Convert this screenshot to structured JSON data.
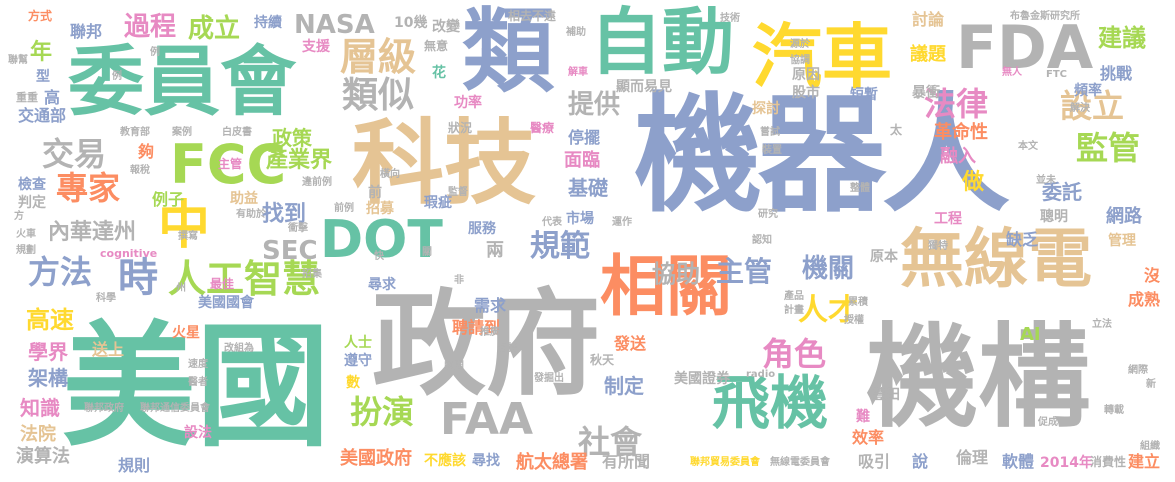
{
  "colors": {
    "green": "#66c2a5",
    "orange": "#fc8d62",
    "blue": "#8da0cb",
    "pink": "#e78ac3",
    "lime": "#a6d854",
    "yellow": "#ffd92f",
    "tan": "#e5c494",
    "gray": "#b3b3b3"
  },
  "words": [
    {
      "text": "機器人",
      "color": "blue"
    },
    {
      "text": "政府",
      "color": "gray"
    },
    {
      "text": "美國",
      "color": "green"
    },
    {
      "text": "機構",
      "color": "gray"
    },
    {
      "text": "科技",
      "color": "tan"
    },
    {
      "text": "類",
      "color": "blue"
    },
    {
      "text": "自動",
      "color": "green"
    },
    {
      "text": "汽車",
      "color": "yellow"
    },
    {
      "text": "委員會",
      "color": "green"
    },
    {
      "text": "FDA",
      "color": "gray"
    },
    {
      "text": "無線電",
      "color": "tan"
    },
    {
      "text": "相關",
      "color": "orange"
    },
    {
      "text": "DOT",
      "color": "green"
    },
    {
      "text": "飛機",
      "color": "green"
    },
    {
      "text": "FCC",
      "color": "lime"
    },
    {
      "text": "中",
      "color": "yellow"
    },
    {
      "text": "FAA",
      "color": "gray"
    },
    {
      "text": "層級",
      "color": "tan"
    },
    {
      "text": "類似",
      "color": "gray"
    },
    {
      "text": "時",
      "color": "blue"
    },
    {
      "text": "人工智慧",
      "color": "lime"
    },
    {
      "text": "法律",
      "color": "pink"
    },
    {
      "text": "設立",
      "color": "tan"
    },
    {
      "text": "監管",
      "color": "lime"
    },
    {
      "text": "專家",
      "color": "orange"
    },
    {
      "text": "交易",
      "color": "gray"
    },
    {
      "text": "方法",
      "color": "blue"
    },
    {
      "text": "規範",
      "color": "blue"
    },
    {
      "text": "扮演",
      "color": "lime"
    },
    {
      "text": "社會",
      "color": "gray"
    },
    {
      "text": "角色",
      "color": "pink"
    },
    {
      "text": "人才",
      "color": "yellow"
    },
    {
      "text": "機關",
      "color": "blue"
    },
    {
      "text": "主管",
      "color": "blue"
    },
    {
      "text": "過程",
      "color": "pink"
    },
    {
      "text": "成立",
      "color": "lime"
    },
    {
      "text": "NASA",
      "color": "gray"
    },
    {
      "text": "建議",
      "color": "lime"
    },
    {
      "text": "提供",
      "color": "gray"
    },
    {
      "text": "政策",
      "color": "lime"
    },
    {
      "text": "產業界",
      "color": "lime"
    },
    {
      "text": "找到",
      "color": "blue"
    },
    {
      "text": "SEC",
      "color": "gray"
    },
    {
      "text": "內華達州",
      "color": "gray"
    },
    {
      "text": "協助",
      "color": "gray"
    },
    {
      "text": "高速",
      "color": "yellow"
    },
    {
      "text": "學界",
      "color": "pink"
    },
    {
      "text": "架構",
      "color": "blue"
    },
    {
      "text": "知識",
      "color": "pink"
    },
    {
      "text": "法院",
      "color": "tan"
    },
    {
      "text": "演算法",
      "color": "gray"
    },
    {
      "text": "規則",
      "color": "blue"
    },
    {
      "text": "設法",
      "color": "pink"
    },
    {
      "text": "美國政府",
      "color": "orange"
    },
    {
      "text": "不應該",
      "color": "yellow"
    },
    {
      "text": "尋找",
      "color": "blue"
    },
    {
      "text": "航太總署",
      "color": "orange"
    },
    {
      "text": "有所聞",
      "color": "gray"
    },
    {
      "text": "吸引",
      "color": "gray"
    },
    {
      "text": "說",
      "color": "blue"
    },
    {
      "text": "倫理",
      "color": "gray"
    },
    {
      "text": "軟體",
      "color": "blue"
    },
    {
      "text": "2014年",
      "color": "pink"
    },
    {
      "text": "消費性",
      "color": "gray"
    },
    {
      "text": "建立",
      "color": "orange"
    },
    {
      "text": "聯邦貿易委員會",
      "color": "yellow"
    },
    {
      "text": "無線電委員會",
      "color": "gray"
    },
    {
      "text": "效率",
      "color": "orange"
    },
    {
      "text": "難",
      "color": "pink"
    },
    {
      "text": "豐田",
      "color": "gray"
    },
    {
      "text": "美國證券",
      "color": "gray"
    },
    {
      "text": "制定",
      "color": "blue"
    },
    {
      "text": "秋天",
      "color": "gray"
    },
    {
      "text": "發送",
      "color": "orange"
    },
    {
      "text": "聘請到",
      "color": "orange"
    },
    {
      "text": "需求",
      "color": "blue"
    },
    {
      "text": "尋求",
      "color": "blue"
    },
    {
      "text": "美國國會",
      "color": "blue"
    },
    {
      "text": "火星",
      "color": "orange"
    },
    {
      "text": "送上",
      "color": "tan"
    },
    {
      "text": "人士",
      "color": "lime"
    },
    {
      "text": "遵守",
      "color": "blue"
    },
    {
      "text": "數",
      "color": "yellow"
    },
    {
      "text": "市場",
      "color": "blue"
    },
    {
      "text": "服務",
      "color": "blue"
    },
    {
      "text": "兩",
      "color": "gray"
    },
    {
      "text": "瑕疵",
      "color": "blue"
    },
    {
      "text": "招募",
      "color": "tan"
    },
    {
      "text": "前",
      "color": "gray"
    },
    {
      "text": "例子",
      "color": "lime"
    },
    {
      "text": "夠",
      "color": "orange"
    },
    {
      "text": "年",
      "color": "lime"
    },
    {
      "text": "聯邦",
      "color": "blue"
    },
    {
      "text": "方式",
      "color": "orange"
    },
    {
      "text": "持續",
      "color": "blue"
    },
    {
      "text": "10幾",
      "color": "gray"
    },
    {
      "text": "改變",
      "color": "gray"
    },
    {
      "text": "相去不遠",
      "color": "gray"
    },
    {
      "text": "討論",
      "color": "tan"
    },
    {
      "text": "布魯金斯研究所",
      "color": "gray"
    },
    {
      "text": "議題",
      "color": "yellow"
    },
    {
      "text": "挑戰",
      "color": "blue"
    },
    {
      "text": "頻率",
      "color": "blue"
    },
    {
      "text": "革命性",
      "color": "orange"
    },
    {
      "text": "融入",
      "color": "pink"
    },
    {
      "text": "做",
      "color": "yellow"
    },
    {
      "text": "委託",
      "color": "blue"
    },
    {
      "text": "網路",
      "color": "blue"
    },
    {
      "text": "聰明",
      "color": "gray"
    },
    {
      "text": "缺乏",
      "color": "blue"
    },
    {
      "text": "管理",
      "color": "tan"
    },
    {
      "text": "原因",
      "color": "gray"
    },
    {
      "text": "股市",
      "color": "gray"
    },
    {
      "text": "短暫",
      "color": "blue"
    },
    {
      "text": "暴衝",
      "color": "gray"
    },
    {
      "text": "探討",
      "color": "tan"
    },
    {
      "text": "顯而易見",
      "color": "gray"
    },
    {
      "text": "功率",
      "color": "pink"
    },
    {
      "text": "停擺",
      "color": "blue"
    },
    {
      "text": "面臨",
      "color": "pink"
    },
    {
      "text": "基礎",
      "color": "blue"
    },
    {
      "text": "狀況",
      "color": "gray"
    },
    {
      "text": "支援",
      "color": "pink"
    },
    {
      "text": "無意",
      "color": "gray"
    },
    {
      "text": "花",
      "color": "green"
    },
    {
      "text": "高",
      "color": "blue"
    },
    {
      "text": "交通部",
      "color": "blue"
    },
    {
      "text": "型",
      "color": "blue"
    },
    {
      "text": "檢查",
      "color": "blue"
    },
    {
      "text": "判定",
      "color": "gray"
    },
    {
      "text": "主管",
      "color": "pink"
    },
    {
      "text": "助益",
      "color": "tan"
    },
    {
      "text": "AI",
      "color": "lime"
    },
    {
      "text": "原本",
      "color": "gray"
    },
    {
      "text": "工程",
      "color": "pink"
    },
    {
      "text": "成熟",
      "color": "orange"
    },
    {
      "text": "沒",
      "color": "orange"
    },
    {
      "text": "最佳",
      "color": "pink"
    },
    {
      "text": "cognitive",
      "color": "pink"
    },
    {
      "text": "研究",
      "color": "gray"
    },
    {
      "text": "解決",
      "color": "gray"
    },
    {
      "text": "本文",
      "color": "gray"
    },
    {
      "text": "並未",
      "color": "gray"
    },
    {
      "text": "FTC",
      "color": "gray"
    },
    {
      "text": "無人",
      "color": "pink"
    },
    {
      "text": "技術",
      "color": "gray"
    },
    {
      "text": "源於",
      "color": "gray"
    },
    {
      "text": "協調",
      "color": "gray"
    },
    {
      "text": "解車",
      "color": "pink"
    },
    {
      "text": "補助",
      "color": "gray"
    },
    {
      "text": "醫療",
      "color": "pink"
    },
    {
      "text": "白皮書",
      "color": "gray"
    },
    {
      "text": "案例",
      "color": "gray"
    },
    {
      "text": "教育部",
      "color": "gray"
    },
    {
      "text": "重重",
      "color": "gray"
    },
    {
      "text": "聯幫",
      "color": "gray"
    },
    {
      "text": "例",
      "color": "gray"
    },
    {
      "text": "前例",
      "color": "gray"
    },
    {
      "text": "衝擊",
      "color": "gray"
    },
    {
      "text": "撰寫",
      "color": "gray"
    },
    {
      "text": "招集",
      "color": "gray"
    },
    {
      "text": "快",
      "color": "gray"
    },
    {
      "text": "非",
      "color": "gray"
    },
    {
      "text": "包括",
      "color": "gray"
    },
    {
      "text": "顧問",
      "color": "gray"
    },
    {
      "text": "發掘出",
      "color": "gray"
    },
    {
      "text": "推廣",
      "color": "gray"
    },
    {
      "text": "改組為",
      "color": "gray"
    },
    {
      "text": "速度",
      "color": "gray"
    },
    {
      "text": "醫者",
      "color": "gray"
    },
    {
      "text": "聯邦政府",
      "color": "gray"
    },
    {
      "text": "聯邦通信委員會",
      "color": "gray"
    },
    {
      "text": "radio",
      "color": "gray"
    },
    {
      "text": "計畫",
      "color": "gray"
    },
    {
      "text": "產品",
      "color": "gray"
    },
    {
      "text": "累積",
      "color": "gray"
    },
    {
      "text": "授權",
      "color": "gray"
    },
    {
      "text": "立法",
      "color": "gray"
    },
    {
      "text": "網際",
      "color": "gray"
    },
    {
      "text": "新",
      "color": "gray"
    },
    {
      "text": "轉載",
      "color": "gray"
    },
    {
      "text": "促成",
      "color": "gray"
    },
    {
      "text": "組織",
      "color": "gray"
    },
    {
      "text": "獨特",
      "color": "gray"
    },
    {
      "text": "認知",
      "color": "gray"
    },
    {
      "text": "運作",
      "color": "gray"
    },
    {
      "text": "代表",
      "color": "gray"
    },
    {
      "text": "監督",
      "color": "gray"
    },
    {
      "text": "有助於",
      "color": "gray"
    },
    {
      "text": "違前例",
      "color": "gray"
    },
    {
      "text": "橫向",
      "color": "gray"
    },
    {
      "text": "整體",
      "color": "gray"
    },
    {
      "text": "嘗試",
      "color": "gray"
    },
    {
      "text": "裝置",
      "color": "gray"
    },
    {
      "text": "太",
      "color": "gray"
    },
    {
      "text": "報稅",
      "color": "gray"
    },
    {
      "text": "方",
      "color": "gray"
    },
    {
      "text": "火車",
      "color": "gray"
    },
    {
      "text": "規劃",
      "color": "gray"
    },
    {
      "text": "科學",
      "color": "gray"
    },
    {
      "text": "州",
      "color": "gray"
    },
    {
      "text": "關",
      "color": "gray"
    },
    {
      "text": "例",
      "color": "gray"
    }
  ]
}
